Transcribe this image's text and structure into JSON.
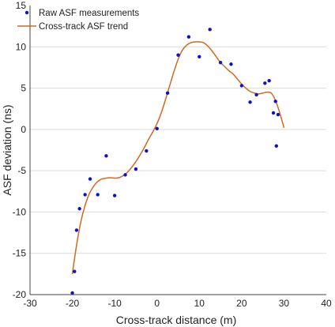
{
  "chart_data": {
    "type": "scatter",
    "xlabel": "Cross-track distance (m)",
    "ylabel": "ASF deviation (ns)",
    "xlim": [
      -30,
      40
    ],
    "ylim": [
      -20,
      15
    ],
    "xticks": [
      -30,
      -20,
      -10,
      0,
      10,
      20,
      30,
      40
    ],
    "yticks": [
      -20,
      -15,
      -10,
      -5,
      0,
      5,
      10,
      15
    ],
    "grid": "horizontal",
    "legend_position": "top-left",
    "series": [
      {
        "name": "Raw ASF measurements",
        "kind": "points",
        "color": "#1010c8",
        "points": [
          [
            -20,
            -19.8
          ],
          [
            -19.5,
            -17.2
          ],
          [
            -19,
            -12.2
          ],
          [
            -18.3,
            -9.6
          ],
          [
            -17,
            -7.9
          ],
          [
            -15.8,
            -6.0
          ],
          [
            -14,
            -7.9
          ],
          [
            -12,
            -3.2
          ],
          [
            -10,
            -8.0
          ],
          [
            -7.5,
            -5.5
          ],
          [
            -5,
            -4.8
          ],
          [
            -2.5,
            -2.6
          ],
          [
            0,
            0.1
          ],
          [
            2.5,
            4.4
          ],
          [
            5,
            9.0
          ],
          [
            7.5,
            11.2
          ],
          [
            10,
            8.8
          ],
          [
            12.5,
            12.1
          ],
          [
            15,
            8.1
          ],
          [
            17.5,
            7.9
          ],
          [
            20,
            5.3
          ],
          [
            22,
            3.3
          ],
          [
            23.5,
            4.2
          ],
          [
            25.5,
            5.6
          ],
          [
            26.5,
            5.9
          ],
          [
            27.5,
            2.0
          ],
          [
            28,
            3.4
          ],
          [
            28.2,
            -2.0
          ],
          [
            28.6,
            1.8
          ]
        ]
      },
      {
        "name": "Cross-track ASF trend",
        "kind": "line",
        "color": "#d2691e",
        "x": [
          -20,
          -19,
          -18,
          -17,
          -16,
          -15,
          -14,
          -13,
          -12,
          -11,
          -10,
          -9,
          -8,
          -7,
          -6,
          -5,
          -4,
          -3,
          -2,
          -1,
          0,
          1,
          2,
          3,
          4,
          5,
          6,
          7,
          8,
          9,
          10,
          11,
          12,
          13,
          14,
          15,
          16,
          17,
          18,
          19,
          20,
          21,
          22,
          23,
          24,
          25,
          26,
          27,
          28,
          29,
          30
        ],
        "y": [
          -17.5,
          -14.0,
          -11.2,
          -9.2,
          -7.8,
          -6.9,
          -6.3,
          -6.0,
          -5.9,
          -5.85,
          -5.9,
          -5.85,
          -5.6,
          -5.2,
          -4.6,
          -3.9,
          -3.1,
          -2.2,
          -1.2,
          -0.3,
          0.7,
          2.0,
          3.6,
          5.3,
          7.0,
          8.5,
          9.6,
          10.2,
          10.5,
          10.6,
          10.6,
          10.5,
          10.1,
          9.5,
          8.8,
          8.1,
          7.6,
          7.1,
          6.7,
          6.1,
          5.5,
          5.0,
          4.6,
          4.4,
          4.3,
          4.4,
          4.5,
          4.4,
          3.5,
          2.0,
          0.2
        ]
      }
    ]
  }
}
